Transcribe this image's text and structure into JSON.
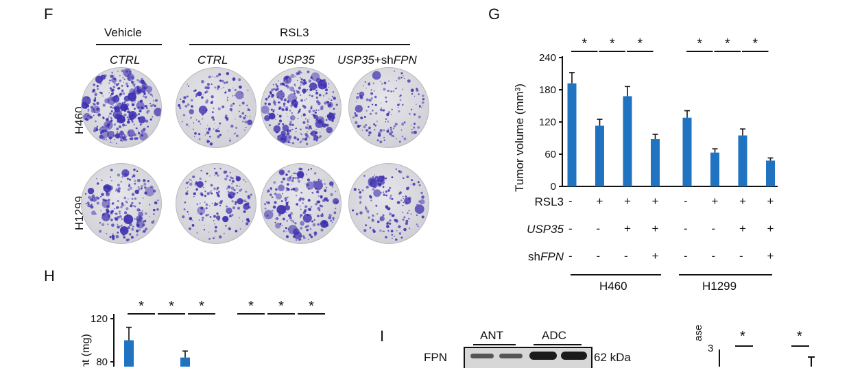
{
  "panels": {
    "F": {
      "label": "F",
      "group_vehicle": "Vehicle",
      "group_rsl3": "RSL3",
      "columns": [
        "CTRL",
        "CTRL",
        "USP35",
        "USP35+shFPN"
      ],
      "col_parts": [
        {
          "ital": "CTRL",
          "plain": ""
        },
        {
          "ital": "CTRL",
          "plain": ""
        },
        {
          "ital": "USP35",
          "plain": ""
        },
        {
          "ital": "USP35",
          "plain": "+sh",
          "ital2": "FPN"
        }
      ],
      "rows": [
        "H460",
        "H1299"
      ],
      "dish_density": [
        [
          1.0,
          0.35,
          0.95,
          0.35
        ],
        [
          0.6,
          0.4,
          0.55,
          0.35
        ]
      ]
    },
    "G": {
      "label": "G",
      "row_labels": [
        "RSL3",
        "USP35",
        "shFPN"
      ],
      "row_label_parts": [
        {
          "plain": "RSL3",
          "ital": ""
        },
        {
          "ital": "USP35",
          "plain": ""
        },
        {
          "plain": "sh",
          "ital": "FPN"
        }
      ],
      "conditions": [
        [
          "-",
          "+",
          "+",
          "+",
          "-",
          "+",
          "+",
          "+"
        ],
        [
          "-",
          "-",
          "+",
          "+",
          "-",
          "-",
          "+",
          "+"
        ],
        [
          "-",
          "-",
          "-",
          "+",
          "-",
          "-",
          "-",
          "+"
        ]
      ],
      "groups": [
        "H460",
        "H1299"
      ],
      "significance": [
        "*",
        "*",
        "*",
        "*",
        "*",
        "*"
      ]
    },
    "H": {
      "label": "H",
      "ylabel_visible": "nt (mg)",
      "ticks": [
        "120",
        "80"
      ],
      "significance": [
        "*",
        "*",
        "*",
        "*",
        "*",
        "*"
      ]
    },
    "I": {
      "label": "I",
      "groups": [
        "ANT",
        "ADC"
      ],
      "band_label": "FPN",
      "kda": "62 kDa",
      "side_label": "ase",
      "side_tick": "3",
      "significance": [
        "*",
        "*"
      ]
    }
  },
  "chart_data": {
    "type": "bar",
    "title": "",
    "xlabel": "",
    "ylabel": "Tumor volume (mm³)",
    "ylim": [
      0,
      240
    ],
    "yticks": [
      0,
      60,
      120,
      180,
      240
    ],
    "x": [
      1,
      2,
      3,
      4,
      5,
      6,
      7,
      8
    ],
    "values": [
      192,
      113,
      168,
      88,
      128,
      63,
      95,
      48
    ],
    "errors": [
      20,
      12,
      18,
      9,
      13,
      7,
      12,
      5
    ],
    "color": "#1f73c1",
    "grid": false
  },
  "partial_chart_H": {
    "ylim_visible": [
      80,
      120
    ],
    "visible_bars": [
      {
        "value": 100,
        "error": 12
      },
      {
        "value": 84,
        "error": 6
      }
    ],
    "color": "#1f73c1"
  }
}
